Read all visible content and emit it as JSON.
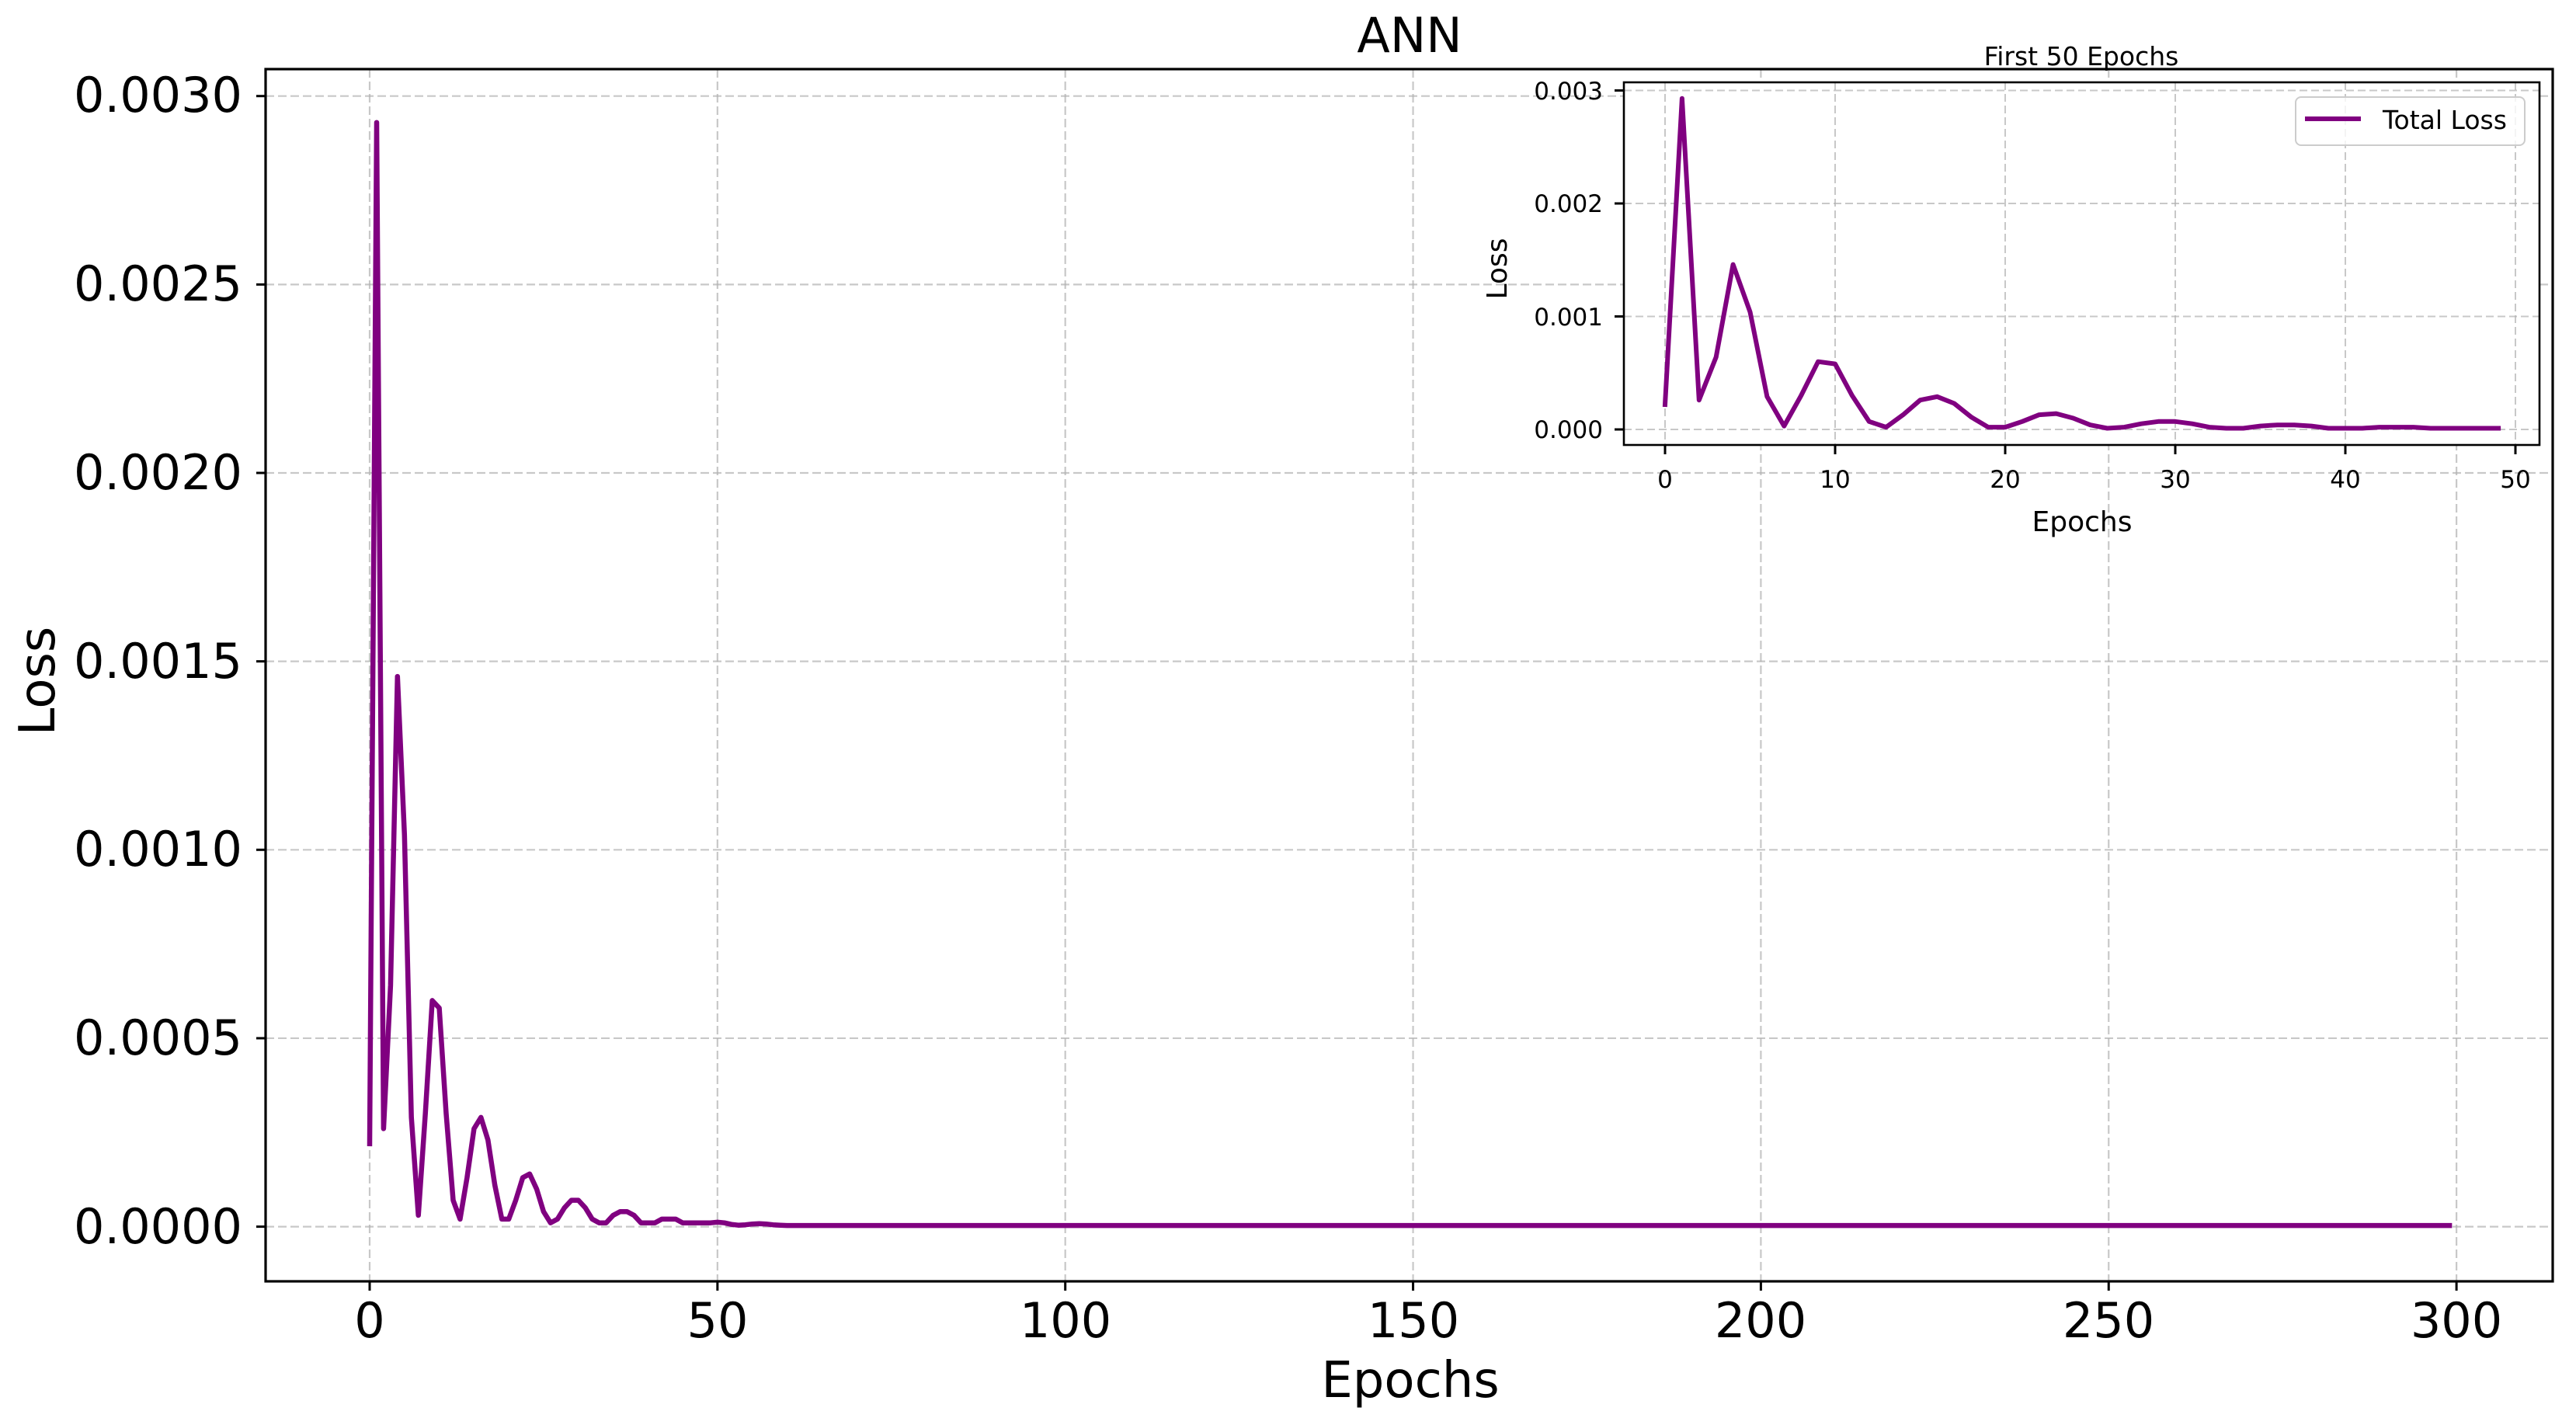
{
  "chart_data": [
    {
      "type": "line",
      "title": "ANN",
      "xlabel": "Epochs",
      "ylabel": "Loss",
      "xlim": [
        -15,
        314
      ],
      "ylim": [
        -0.00015,
        0.00315
      ],
      "grid": true,
      "x_ticks": [
        0,
        50,
        100,
        150,
        200,
        250,
        300
      ],
      "x_tick_labels": [
        "0",
        "50",
        "100",
        "150",
        "200",
        "250",
        "300"
      ],
      "y_ticks": [
        0.0,
        0.0005,
        0.001,
        0.0015,
        0.002,
        0.0025,
        0.003
      ],
      "y_tick_labels": [
        "0.0000",
        "0.0005",
        "0.0010",
        "0.0015",
        "0.0020",
        "0.0025",
        "0.0030"
      ],
      "series": [
        {
          "name": "Total Loss",
          "color": "#800080",
          "x_start": 0,
          "x_end": 299,
          "values_first_60": [
            0.00022,
            0.00293,
            0.00026,
            0.00064,
            0.00146,
            0.00104,
            0.00029,
            3e-05,
            0.0003,
            0.0006,
            0.00058,
            0.0003,
            7e-05,
            2e-05,
            0.00013,
            0.00026,
            0.00029,
            0.00023,
            0.00011,
            2e-05,
            2e-05,
            7e-05,
            0.00013,
            0.00014,
            0.0001,
            4e-05,
            1e-05,
            2e-05,
            5e-05,
            7e-05,
            7e-05,
            5e-05,
            2e-05,
            1e-05,
            1e-05,
            3e-05,
            4e-05,
            4e-05,
            3e-05,
            1e-05,
            1e-05,
            1e-05,
            2e-05,
            2e-05,
            2e-05,
            1e-05,
            1e-05,
            1e-05,
            1e-05,
            1e-05,
            1.2e-05,
            1e-05,
            6e-06,
            4e-06,
            5e-06,
            7e-06,
            8e-06,
            7e-06,
            5e-06,
            4e-06
          ],
          "values_after_60_approx": 3e-06
        }
      ]
    },
    {
      "type": "line",
      "title": "First 50 Epochs",
      "xlabel": "Epochs",
      "ylabel": "Loss",
      "xlim": [
        -2.45,
        51.45
      ],
      "ylim": [
        -0.00014,
        0.00307
      ],
      "grid": true,
      "x_ticks": [
        0,
        10,
        20,
        30,
        40,
        50
      ],
      "x_tick_labels": [
        "0",
        "10",
        "20",
        "30",
        "40",
        "50"
      ],
      "y_ticks": [
        0.0,
        0.001,
        0.002,
        0.003
      ],
      "y_tick_labels": [
        "0.000",
        "0.001",
        "0.002",
        "0.003"
      ],
      "legend": {
        "position": "upper right",
        "entries": [
          "Total Loss"
        ]
      },
      "series": [
        {
          "name": "Total Loss",
          "color": "#800080",
          "x_start": 0,
          "x_end": 49,
          "source": "first 50 values of main series"
        }
      ]
    }
  ],
  "main": {
    "title": "ANN",
    "xlabel": "Epochs",
    "ylabel": "Loss",
    "x_tick_labels": [
      "0",
      "50",
      "100",
      "150",
      "200",
      "250",
      "300"
    ],
    "y_tick_labels": [
      "0.0000",
      "0.0005",
      "0.0010",
      "0.0015",
      "0.0020",
      "0.0025",
      "0.0030"
    ]
  },
  "inset": {
    "title": "First 50 Epochs",
    "xlabel": "Epochs",
    "ylabel": "Loss",
    "x_tick_labels": [
      "0",
      "10",
      "20",
      "30",
      "40",
      "50"
    ],
    "y_tick_labels": [
      "0.000",
      "0.001",
      "0.002",
      "0.003"
    ],
    "legend_label": "Total Loss"
  },
  "colors": {
    "line": "#800080",
    "grid": "#b0b0b0",
    "axes": "#000000",
    "background": "#ffffff"
  }
}
